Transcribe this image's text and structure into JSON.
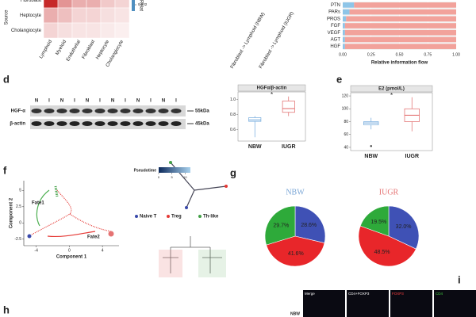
{
  "panel_labels": [
    "d",
    "e",
    "f",
    "g",
    "h",
    "i"
  ],
  "transfer_labels": [
    "Fibroblast -> Lymphoid (NBW)",
    "Fibroblast -> Lymphoid (IUGR)"
  ],
  "blot": {
    "lanes": [
      "N",
      "I",
      "N",
      "I",
      "N",
      "I",
      "N",
      "I",
      "N",
      "I",
      "N",
      "I"
    ],
    "bands": [
      "HGF-α",
      "β-actin"
    ],
    "sizes": [
      "55kDa",
      "45kDa"
    ]
  },
  "microscopy": {
    "columns": [
      "Merge",
      "CD4+FOXP3",
      "FOXP3",
      "CD4"
    ],
    "column_colors": [
      "#ffffff",
      "#ffffff",
      "#ff4040",
      "#40d040"
    ],
    "rows": [
      "NBW"
    ]
  },
  "chart_data": [
    {
      "type": "heatmap",
      "ylabel": "Source",
      "rows": [
        "Fibroblast",
        "Heptocyte",
        "Cholangiocyte"
      ],
      "columns": [
        "Lymphoid",
        "Myeloid",
        "Endothelial",
        "Fibroblast",
        "Heptocyte",
        "Cholangiocyte"
      ],
      "values": [
        [
          0.004,
          0.002,
          0.0015,
          0.0015,
          0.001,
          0.0008
        ],
        [
          0.0015,
          0.0012,
          0.0008,
          0.0008,
          0.0006,
          0.0005
        ],
        [
          0.0008,
          0.0006,
          0.0005,
          0.0005,
          0.0004,
          0.0003
        ]
      ],
      "color": "#c62828",
      "clim": [
        0,
        0.004
      ],
      "colorbar_label": "Relat",
      "colorbar_ticks": [
        0.002
      ]
    },
    {
      "type": "bar",
      "orientation": "horizontal",
      "stacked": true,
      "categories": [
        "PTN",
        "PARs",
        "PROS",
        "FGF",
        "VEGF",
        "AGT",
        "HGF"
      ],
      "series": [
        {
          "color": "#8ec5e8",
          "values": [
            0.1,
            0.06,
            0.03,
            0.02,
            0.02,
            0.02,
            0.02
          ]
        },
        {
          "color": "#f2a29b",
          "values": [
            0.9,
            0.94,
            0.97,
            0.98,
            0.98,
            0.98,
            0.98
          ]
        }
      ],
      "xlim": [
        0,
        1
      ],
      "xticks": [
        {
          "value": 0,
          "label": "0.00"
        },
        0.25,
        {
          "value": 0.5,
          "label": "0.50"
        },
        0.75,
        {
          "value": 1,
          "label": "1.00"
        }
      ],
      "xlabel": "Relative information flow"
    },
    {
      "type": "box",
      "title": "HGFα/β-actin",
      "categories": [
        "NBW",
        "IUGR"
      ],
      "colors": [
        "#6fa8dc",
        "#e06666"
      ],
      "stats": [
        {
          "min": 0.5,
          "q1": 0.71,
          "median": 0.73,
          "q3": 0.76,
          "max": 0.78
        },
        {
          "min": 0.78,
          "q1": 0.83,
          "median": 0.88,
          "q3": 0.98,
          "max": 1.04
        }
      ],
      "outliers": [
        [],
        []
      ],
      "ylim": [
        0.45,
        1.1
      ],
      "yticks": [
        0.6,
        0.8,
        {
          "value": 1,
          "label": "1.0"
        }
      ],
      "annotation": "*"
    },
    {
      "type": "box",
      "title": "E2 (pmol/L)",
      "categories": [
        "NBW",
        "IUGR"
      ],
      "colors": [
        "#6fa8dc",
        "#e06666"
      ],
      "stats": [
        {
          "min": 68,
          "q1": 75,
          "median": 78,
          "q3": 80,
          "max": 86
        },
        {
          "min": 65,
          "q1": 80,
          "median": 90,
          "q3": 100,
          "max": 118
        }
      ],
      "outliers": [
        [
          42
        ],
        []
      ],
      "ylim": [
        35,
        125
      ],
      "yticks": [
        40,
        60,
        80,
        100,
        120
      ],
      "annotation": "*"
    },
    {
      "type": "pie",
      "title": "NBW",
      "title_color": "#7aa6d6",
      "values": [
        28.6,
        41.6,
        29.7
      ],
      "value_labels": [
        "28.6%",
        "41.6%",
        "29.7%"
      ],
      "colors": [
        "#3f51b5",
        "#e8262a",
        "#2eaa3a"
      ]
    },
    {
      "type": "pie",
      "title": "IUGR",
      "title_color": "#e57373",
      "values": [
        32,
        48.5,
        19.5
      ],
      "value_labels": [
        "32.0%",
        "48.5%",
        "19.5%"
      ],
      "colors": [
        "#3f51b5",
        "#e8262a",
        "#2eaa3a"
      ]
    },
    {
      "type": "trajectory",
      "xlabel": "Component 1",
      "ylabel": "Component 2",
      "xlim": [
        -5.5,
        6
      ],
      "ylim": [
        -3.5,
        6.5
      ],
      "xticks": [
        -4,
        0,
        4
      ],
      "yticks": [
        -2.5,
        0,
        2.5,
        5
      ],
      "annotations": [
        "Fate1",
        "Fate2"
      ],
      "colorbar_label": "Pseudotime",
      "clim": [
        0,
        12
      ],
      "colorbar_ticks": [
        0,
        5,
        10
      ],
      "legend": [
        {
          "name": "Naive T",
          "color": "#3949ab"
        },
        {
          "name": "Treg",
          "color": "#e53935"
        },
        {
          "name": "Th-like",
          "color": "#43a047"
        }
      ]
    }
  ]
}
